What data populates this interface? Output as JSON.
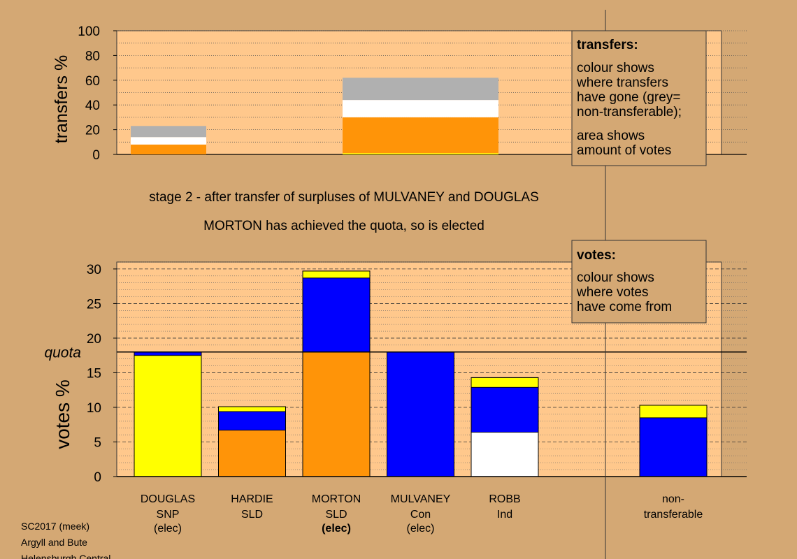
{
  "chart_data": [
    {
      "type": "bar",
      "name": "transfers",
      "ylabel": "transfers %",
      "ylim": [
        0,
        100
      ],
      "yticks": [
        0,
        20,
        40,
        60,
        80,
        100
      ],
      "stack_order": [
        "orange",
        "white",
        "grey"
      ],
      "bars": [
        {
          "slot": 0,
          "orange": 8,
          "white": 6,
          "grey": 9
        },
        {
          "slot": 3,
          "yellow": 1,
          "orange": 29,
          "white": 14,
          "grey": 18
        }
      ],
      "legend": {
        "title": "transfers:",
        "lines": [
          "colour shows",
          "where transfers",
          "have gone (grey=",
          "non-transferable);",
          "",
          "area shows",
          "amount of votes"
        ]
      }
    },
    {
      "type": "bar",
      "name": "votes",
      "ylabel": "votes %",
      "ylim": [
        0,
        31
      ],
      "yticks": [
        0,
        5,
        10,
        15,
        20,
        25,
        30
      ],
      "quota": 18,
      "quota_label": "quota",
      "categories": [
        {
          "name": "DOUGLAS",
          "party": "SNP",
          "status": "(elec)",
          "bold_status": false
        },
        {
          "name": "HARDIE",
          "party": "SLD",
          "status": "",
          "bold_status": false
        },
        {
          "name": "MORTON",
          "party": "SLD",
          "status": "(elec)",
          "bold_status": true
        },
        {
          "name": "MULVANEY",
          "party": "Con",
          "status": "(elec)",
          "bold_status": false
        },
        {
          "name": "ROBB",
          "party": "Ind",
          "status": "",
          "bold_status": false
        },
        {
          "name": "",
          "party": "",
          "status": "",
          "bold_status": false
        },
        {
          "name": "non-",
          "party": "transferable",
          "status": "",
          "bold_status": false
        }
      ],
      "segments": [
        [
          {
            "color": "yellow",
            "value": 17.5
          },
          {
            "color": "blue",
            "value": 0.5
          }
        ],
        [
          {
            "color": "orange",
            "value": 6.7
          },
          {
            "color": "blue",
            "value": 2.7
          },
          {
            "color": "yellow",
            "value": 0.7
          }
        ],
        [
          {
            "color": "orange",
            "value": 18
          },
          {
            "color": "blue",
            "value": 10.7
          },
          {
            "color": "yellow",
            "value": 1.0
          }
        ],
        [
          {
            "color": "blue",
            "value": 18
          }
        ],
        [
          {
            "color": "white",
            "value": 6.4
          },
          {
            "color": "blue",
            "value": 6.5
          },
          {
            "color": "yellow",
            "value": 1.4
          }
        ],
        [],
        [
          {
            "color": "blue",
            "value": 8.5
          },
          {
            "color": "yellow",
            "value": 1.8
          }
        ]
      ],
      "legend": {
        "title": "votes:",
        "lines": [
          "colour shows",
          "where votes",
          "have come from"
        ]
      }
    }
  ],
  "colors": {
    "background": "#D4A874",
    "plot_bg": "#FFC88C",
    "yellow": "#FFFF00",
    "orange": "#FF9408",
    "blue": "#0000FF",
    "white": "#FFFFFF",
    "grey": "#B0B0B0"
  },
  "captions": {
    "line1": "stage 2 - after transfer of surpluses of MULVANEY and DOUGLAS",
    "line2": "MORTON has achieved the quota, so is elected"
  },
  "footer": [
    "SC2017 (meek)",
    "Argyll and Bute",
    "Helensburgh Central"
  ]
}
